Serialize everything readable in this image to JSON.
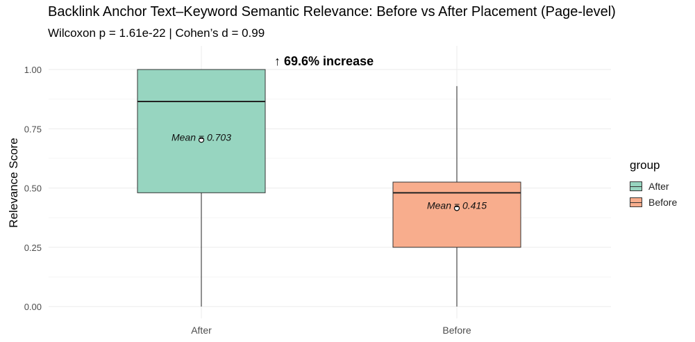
{
  "chart_data": {
    "type": "box",
    "title": "Backlink Anchor Text–Keyword Semantic Relevance: Before vs After Placement (Page-level)",
    "subtitle": "Wilcoxon p = 1.61e-22 | Cohen’s d = 0.99",
    "xlabel": "",
    "ylabel": "Relevance Score",
    "ylim": [
      0,
      1.05
    ],
    "yticks": [
      "0.00",
      "0.25",
      "0.50",
      "0.75",
      "1.00"
    ],
    "categories": [
      "After",
      "Before"
    ],
    "boxes": [
      {
        "category": "After",
        "min": 0.0,
        "q1": 0.48,
        "median": 0.865,
        "q3": 1.0,
        "max": 1.0,
        "mean": 0.703,
        "mean_label": "Mean = 0.703",
        "color": "#97d5c0"
      },
      {
        "category": "Before",
        "min": 0.0,
        "q1": 0.25,
        "median": 0.48,
        "q3": 0.525,
        "max": 0.93,
        "mean": 0.415,
        "mean_label": "Mean = 0.415",
        "color": "#f8ad8d"
      }
    ],
    "annotation": "↑ 69.6% increase",
    "legend": {
      "title": "group",
      "position": "right",
      "entries": [
        "After",
        "Before"
      ]
    },
    "grid": true
  }
}
